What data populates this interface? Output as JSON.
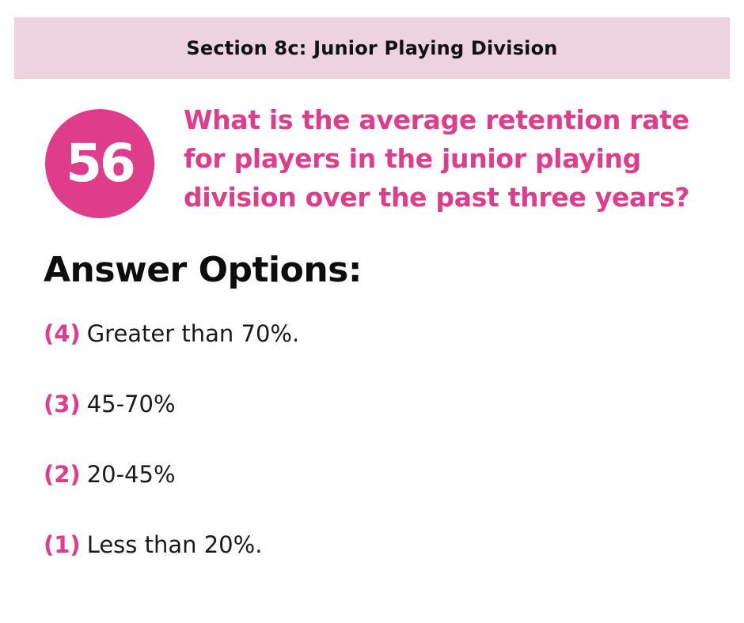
{
  "header": {
    "section_title": "Section 8c: Junior Playing Division"
  },
  "question": {
    "number": "56",
    "text": "What is the average retention rate for players in the junior playing division over the past three years?"
  },
  "answers": {
    "heading": "Answer Options:",
    "options": [
      {
        "number": "(4)",
        "label": "Greater than 70%."
      },
      {
        "number": "(3)",
        "label": "45-70%"
      },
      {
        "number": "(2)",
        "label": "20-45%"
      },
      {
        "number": "(1)",
        "label": "Less than 20%."
      }
    ]
  },
  "colors": {
    "accent": "#df3c8b",
    "header_background": "#ecd3de",
    "text": "#111111"
  }
}
